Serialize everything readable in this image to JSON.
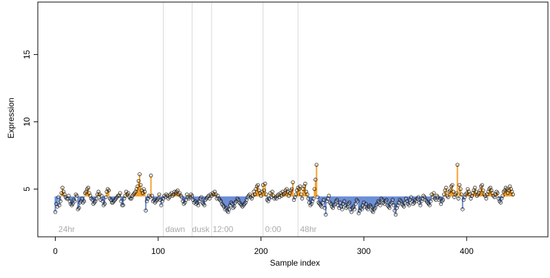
{
  "chart_data": {
    "type": "scatter",
    "xlabel": "Sample index",
    "ylabel": "Expression",
    "xlim": [
      -17,
      479
    ],
    "ylim": [
      1.45,
      18.9
    ],
    "x_ticks": [
      0,
      100,
      200,
      300,
      400
    ],
    "y_ticks": [
      5,
      10,
      15
    ],
    "baseline": 4.45,
    "colors": {
      "above": "#f5a02a",
      "below": "#6d8fd6",
      "point_edge": "#222222",
      "axes": "#000000",
      "divider": "#d9d9d9",
      "annotation": "#aaaaaa"
    },
    "segment_dividers": [
      105,
      133,
      152,
      202,
      236
    ],
    "segment_labels": [
      {
        "x": 3,
        "text": "24hr"
      },
      {
        "x": 107,
        "text": "dawn"
      },
      {
        "x": 133,
        "text": "dusk"
      },
      {
        "x": 153,
        "text": "12:00"
      },
      {
        "x": 204,
        "text": "0:00"
      },
      {
        "x": 238,
        "text": "48hr"
      }
    ],
    "series": [
      {
        "values": [
          3.3,
          3.9,
          3.7,
          4.4,
          3.8,
          4.1,
          4.7,
          5.1,
          4.8,
          4.6,
          4.4,
          4.3,
          4.3,
          4.5,
          4.1,
          3.9,
          3.8,
          3.9,
          4.2,
          4.1,
          4.6,
          4.5,
          3.5,
          3.6,
          4.0,
          4.1,
          4.3,
          4.0,
          4.1,
          4.7,
          4.8,
          5.0,
          5.1,
          4.7,
          4.5,
          4.3,
          4.2,
          3.9,
          4.0,
          4.1,
          4.3,
          4.6,
          4.8,
          4.6,
          4.2,
          4.5,
          4.1,
          3.8,
          3.9,
          4.4,
          4.8,
          5.0,
          4.9,
          4.3,
          4.2,
          4.0,
          4.0,
          4.1,
          4.2,
          4.3,
          4.4,
          4.5,
          4.5,
          4.7,
          4.1,
          3.8,
          3.8,
          4.3,
          4.5,
          4.8,
          4.6,
          4.7,
          4.4,
          4.3,
          4.3,
          4.5,
          4.6,
          4.7,
          4.8,
          5.0,
          5.2,
          5.6,
          6.1,
          5.3,
          4.9,
          4.7,
          5.0,
          4.8,
          3.4,
          4.1,
          4.3,
          4.5,
          4.4,
          6.0,
          4.5,
          4.1,
          4.2,
          4.0,
          4.1,
          4.2,
          4.3,
          4.6,
          4.2,
          3.8,
          4.1,
          4.3,
          4.5,
          4.4,
          4.6,
          4.5,
          4.3,
          4.4,
          4.6,
          4.7,
          4.5,
          4.6,
          4.8,
          4.7,
          4.8,
          4.9,
          4.6,
          4.7,
          4.5,
          4.4,
          4.1,
          3.9,
          4.0,
          4.2,
          4.6,
          4.4,
          4.3,
          4.4,
          4.6,
          4.5,
          4.2,
          4.0,
          4.1,
          3.9,
          4.0,
          3.8,
          4.1,
          4.3,
          4.4,
          4.0,
          3.9,
          3.8,
          4.2,
          4.3,
          4.4,
          4.5,
          4.3,
          4.6,
          4.5,
          4.7,
          4.6,
          4.8,
          4.6,
          4.3,
          4.5,
          4.3,
          4.2,
          4.1,
          3.9,
          3.8,
          3.7,
          3.5,
          3.6,
          3.4,
          3.3,
          3.5,
          3.8,
          4.0,
          3.9,
          3.6,
          3.7,
          4.0,
          4.1,
          4.3,
          4.2,
          4.0,
          3.9,
          3.8,
          3.7,
          3.8,
          3.9,
          4.0,
          4.2,
          4.4,
          4.5,
          4.6,
          4.4,
          4.3,
          4.5,
          4.8,
          4.6,
          5.0,
          5.2,
          5.3,
          4.9,
          4.7,
          4.5,
          4.8,
          5.3,
          4.9,
          5.4,
          4.6,
          4.2,
          4.1,
          4.3,
          4.7,
          4.4,
          4.8,
          4.5,
          4.3,
          4.4,
          4.3,
          4.5,
          4.6,
          4.4,
          4.7,
          4.5,
          4.8,
          4.6,
          4.7,
          4.9,
          5.0,
          4.8,
          4.5,
          4.7,
          4.9,
          5.0,
          5.5,
          4.2,
          4.4,
          4.6,
          4.9,
          5.1,
          5.0,
          5.2,
          4.6,
          4.3,
          5.0,
          5.2,
          5.4,
          4.8,
          4.6,
          4.3,
          4.0,
          3.8,
          3.9,
          4.1,
          4.3,
          5.0,
          5.7,
          6.8,
          4.4,
          4.0,
          3.9,
          3.8,
          3.7,
          4.0,
          4.2,
          3.6,
          3.1,
          4.1,
          4.3,
          4.5,
          4.0,
          3.9,
          3.7,
          3.6,
          3.8,
          3.9,
          4.1,
          4.2,
          3.8,
          3.6,
          4.0,
          3.7,
          3.5,
          3.9,
          4.1,
          3.8,
          3.6,
          3.7,
          3.9,
          4.0,
          3.5,
          3.3,
          3.6,
          3.7,
          3.5,
          3.9,
          4.2,
          4.1,
          3.2,
          3.4,
          3.6,
          3.5,
          3.8,
          4.0,
          3.7,
          3.9,
          3.6,
          3.5,
          3.7,
          3.8,
          3.7,
          3.4,
          3.3,
          3.5,
          3.6,
          3.8,
          3.9,
          4.1,
          4.0,
          3.8,
          4.3,
          4.2,
          4.0,
          3.9,
          4.1,
          4.2,
          3.8,
          3.7,
          3.6,
          3.9,
          4.0,
          4.2,
          3.8,
          3.4,
          3.1,
          3.6,
          3.8,
          4.0,
          4.2,
          4.1,
          3.9,
          3.8,
          3.7,
          4.0,
          4.3,
          4.1,
          3.9,
          3.8,
          4.2,
          4.4,
          4.1,
          3.9,
          4.0,
          4.2,
          4.1,
          4.3,
          4.4,
          4.0,
          3.8,
          4.1,
          4.3,
          4.5,
          4.4,
          4.2,
          4.1,
          4.0,
          3.9,
          3.8,
          4.1,
          4.6,
          4.4,
          4.7,
          4.3,
          4.2,
          4.5,
          4.4,
          4.2,
          4.3,
          3.9,
          4.1,
          4.2,
          4.6,
          4.9,
          5.1,
          4.5,
          4.4,
          4.8,
          4.9,
          5.2,
          5.3,
          4.8,
          4.4,
          4.6,
          4.7,
          6.8,
          4.3,
          5.3,
          5.0,
          4.6,
          3.5,
          4.2,
          4.4,
          4.6,
          4.7,
          5.0,
          4.8,
          4.6,
          4.3,
          4.5,
          4.7,
          4.9,
          5.1,
          4.8,
          4.5,
          4.6,
          4.7,
          4.9,
          5.2,
          5.3,
          4.9,
          4.6,
          4.5,
          4.3,
          4.6,
          4.8,
          5.0,
          5.1,
          4.9,
          4.7,
          4.5,
          4.4,
          4.6,
          4.8,
          4.7,
          4.3,
          4.1,
          4.0,
          4.3,
          4.5,
          4.8,
          4.9,
          5.1,
          5.0,
          4.7,
          4.9,
          5.2,
          5.0,
          4.8,
          4.6
        ]
      }
    ]
  }
}
